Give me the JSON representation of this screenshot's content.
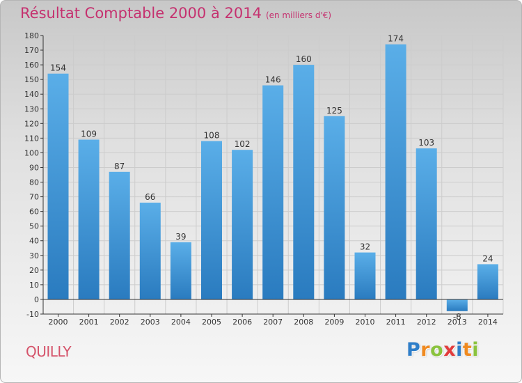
{
  "header": {
    "title": "Résultat Comptable 2000 à 2014",
    "subtitle": "(en milliers d'€)"
  },
  "footer": {
    "town": "QUILLY",
    "logo_text": "Proxiti",
    "logo_letters": [
      {
        "char": "P",
        "color": "#2e7ec9"
      },
      {
        "char": "r",
        "color": "#f08a1f"
      },
      {
        "char": "o",
        "color": "#8ac33d"
      },
      {
        "char": "x",
        "color": "#e23c3c"
      },
      {
        "char": "i",
        "color": "#2e7ec9"
      },
      {
        "char": "t",
        "color": "#f08a1f"
      },
      {
        "char": "i",
        "color": "#8ac33d"
      }
    ]
  },
  "colors": {
    "title": "#c5316f",
    "bar_light": "#5aaee8",
    "bar_dark": "#2a7bbf",
    "axis": "#333333",
    "grid": "#cccccc"
  },
  "chart_data": {
    "type": "bar",
    "title": "Résultat Comptable 2000 à 2014",
    "subtitle": "(en milliers d'€)",
    "xlabel": "",
    "ylabel": "",
    "categories": [
      "2000",
      "2001",
      "2002",
      "2003",
      "2004",
      "2005",
      "2006",
      "2007",
      "2008",
      "2009",
      "2010",
      "2011",
      "2012",
      "2013",
      "2014"
    ],
    "values": [
      154,
      109,
      87,
      66,
      39,
      108,
      102,
      146,
      160,
      125,
      32,
      174,
      103,
      -8,
      24
    ],
    "value_labels": [
      "154",
      "109",
      "87",
      "66",
      "39",
      "108",
      "102",
      "146",
      "160",
      "125",
      "32",
      "174",
      "103",
      "-8",
      "24"
    ],
    "ylim": [
      -10,
      180
    ],
    "yticks": [
      -10,
      0,
      10,
      20,
      30,
      40,
      50,
      60,
      70,
      80,
      90,
      100,
      110,
      120,
      130,
      140,
      150,
      160,
      170,
      180
    ],
    "grid": true
  }
}
